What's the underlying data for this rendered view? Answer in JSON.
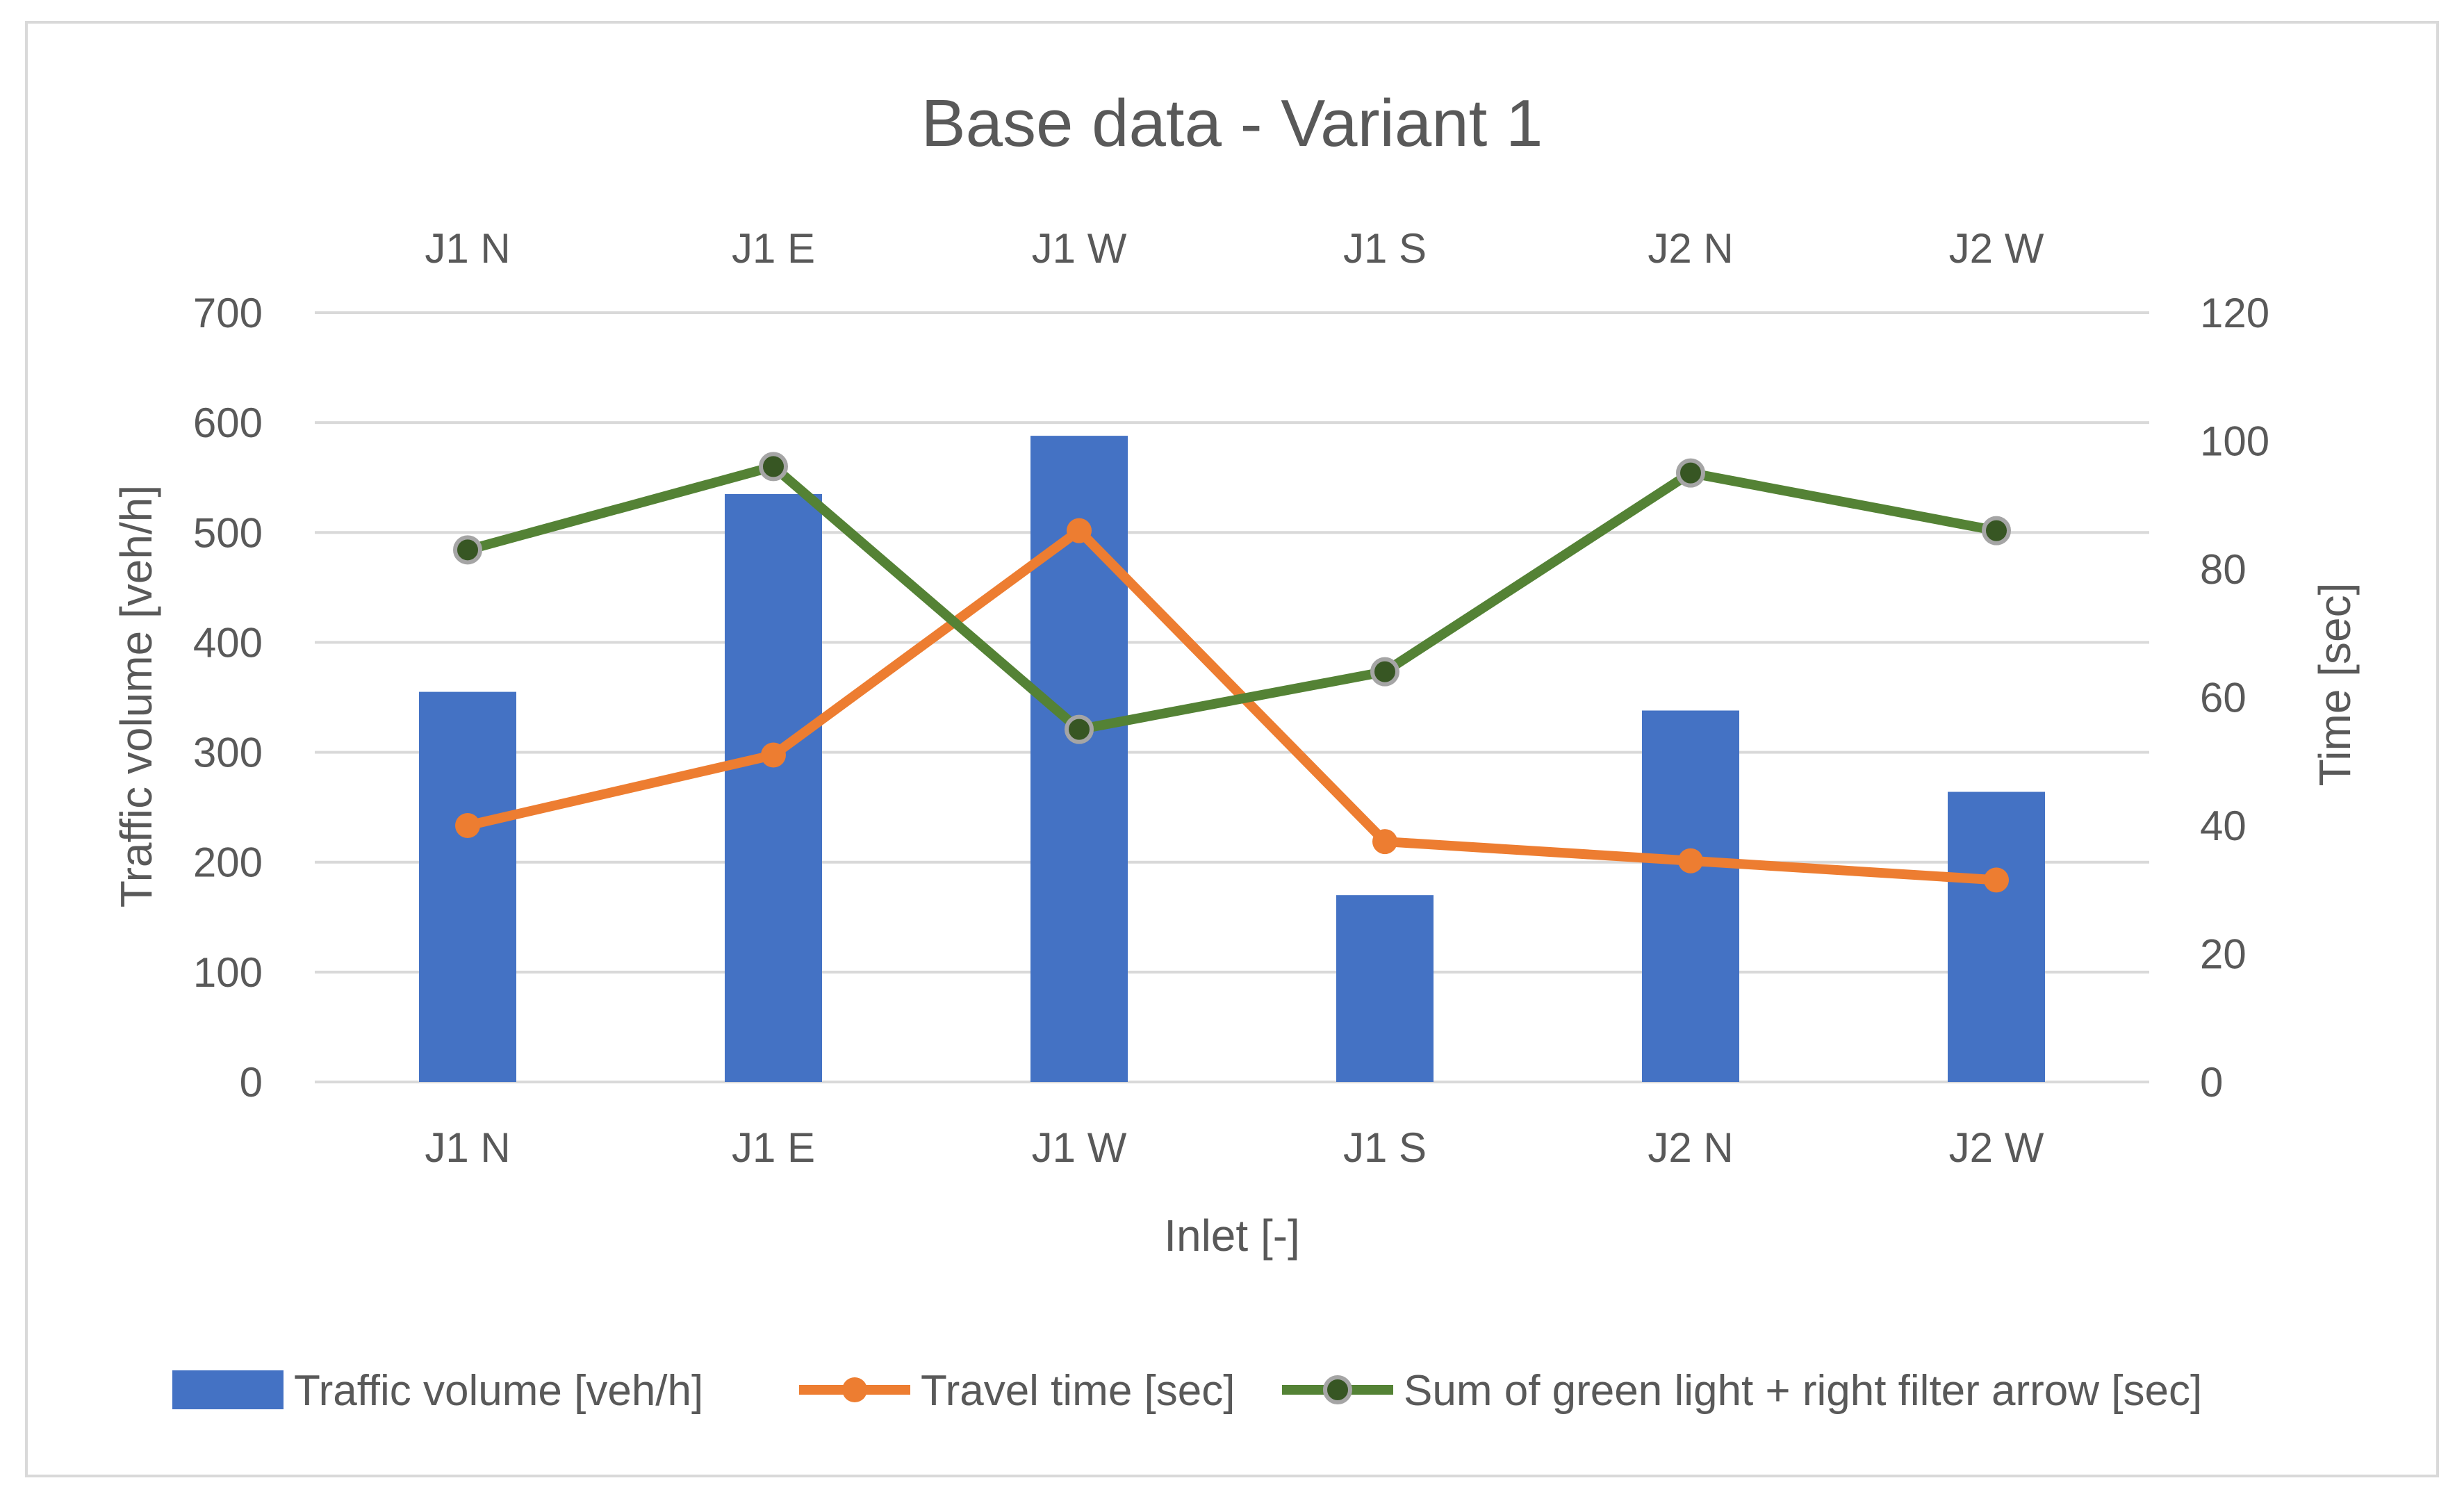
{
  "chart_data": {
    "type": "bar",
    "title": "Base data - Variant 1",
    "categories": [
      "J1 N",
      "J1 E",
      "J1 W",
      "J1 S",
      "J2 N",
      "J2 W"
    ],
    "top_categories": [
      "J1 N",
      "J1 E",
      "J1 W",
      "J1 S",
      "J2 N",
      "J2 W"
    ],
    "xlabel": "Inlet [-]",
    "ylabel": "Traffic volume [veh/h]",
    "y2label": "Time [sec]",
    "ylim": [
      0,
      700
    ],
    "y2lim": [
      0,
      120
    ],
    "yticks": [
      0,
      100,
      200,
      300,
      400,
      500,
      600,
      700
    ],
    "y2ticks": [
      0,
      20,
      40,
      60,
      80,
      100,
      120
    ],
    "grid": true,
    "legend_position": "bottom",
    "series": [
      {
        "name": "Traffic volume [veh/h]",
        "type": "bar",
        "axis": "left",
        "color": "#4472c4",
        "values": [
          355,
          535,
          588,
          170,
          338,
          264
        ]
      },
      {
        "name": "Travel time [sec]",
        "type": "line",
        "axis": "right",
        "color": "#ed7d31",
        "marker_color": "#ed7d31",
        "values": [
          40,
          51,
          86,
          37.5,
          34.5,
          31.5
        ]
      },
      {
        "name": "Sum of green light + right filter arrow [sec]",
        "type": "line",
        "axis": "right",
        "color": "#548235",
        "marker_color": "#375623",
        "marker_edge": "#a5a5a5",
        "values": [
          83,
          96,
          55,
          64,
          95,
          86
        ]
      }
    ]
  }
}
